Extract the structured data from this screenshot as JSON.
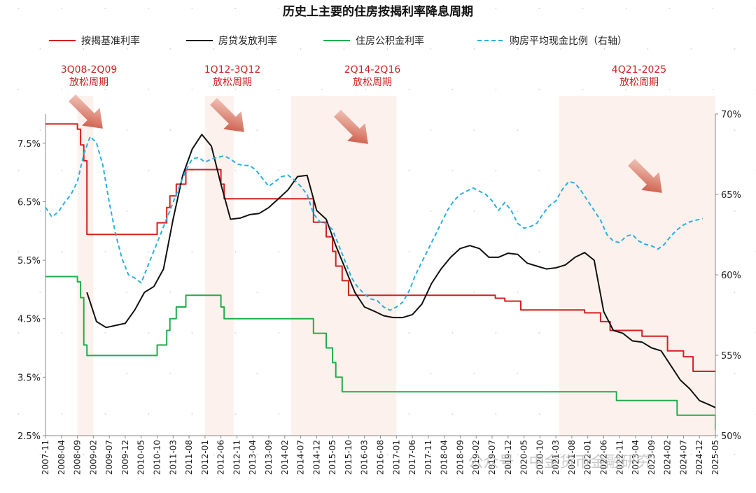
{
  "chart_data": {
    "type": "line",
    "title": "历史上主要的住房按揭利率降息周期",
    "watermark": "公众号 · 中金货币金融研究",
    "left_axis": {
      "ylim": [
        2.5,
        8.0
      ],
      "ticks": [
        "7.5%",
        "6.5%",
        "5.5%",
        "4.5%",
        "3.5%",
        "2.5%"
      ],
      "tick_values": [
        7.5,
        6.5,
        5.5,
        4.5,
        3.5,
        2.5
      ]
    },
    "right_axis": {
      "ylim": [
        50,
        70
      ],
      "ticks": [
        "70%",
        "65%",
        "60%",
        "55%",
        "50%"
      ],
      "tick_values": [
        70,
        65,
        60,
        55,
        50
      ]
    },
    "x_range": [
      "2007-11",
      "2025-05"
    ],
    "x_ticks": [
      "2007-11",
      "2008-04",
      "2008-09",
      "2009-02",
      "2009-07",
      "2009-12",
      "2010-05",
      "2010-10",
      "2011-03",
      "2011-08",
      "2012-01",
      "2012-06",
      "2012-11",
      "2013-04",
      "2013-09",
      "2014-02",
      "2014-07",
      "2014-12",
      "2015-05",
      "2015-10",
      "2016-03",
      "2016-08",
      "2017-01",
      "2017-06",
      "2017-11",
      "2018-04",
      "2018-09",
      "2019-02",
      "2019-07",
      "2019-12",
      "2020-05",
      "2020-10",
      "2021-03",
      "2021-08",
      "2022-01",
      "2022-06",
      "2022-11",
      "2023-04",
      "2023-09",
      "2024-02",
      "2024-07",
      "2024-12",
      "2025-05"
    ],
    "cycles": [
      {
        "label1": "3Q08-2Q09",
        "label2": "放松周期",
        "start": "2008-09",
        "end": "2009-02"
      },
      {
        "label1": "1Q12-3Q12",
        "label2": "放松周期",
        "start": "2012-01",
        "end": "2012-10"
      },
      {
        "label1": "2Q14-2Q16",
        "label2": "放松周期",
        "start": "2014-04",
        "end": "2017-01"
      },
      {
        "label1": "4Q21-2025",
        "label2": "放松周期",
        "start": "2021-04",
        "end": "2025-05"
      }
    ],
    "series": [
      {
        "name": "按揭基准利率",
        "axis": "left",
        "color": "#d42020",
        "style": "step",
        "points": [
          [
            "2007-11",
            7.83
          ],
          [
            "2008-09",
            7.83
          ],
          [
            "2008-09",
            7.74
          ],
          [
            "2008-10",
            7.74
          ],
          [
            "2008-10",
            7.47
          ],
          [
            "2008-11",
            7.47
          ],
          [
            "2008-11",
            7.2
          ],
          [
            "2008-12",
            7.2
          ],
          [
            "2008-12",
            6.12
          ],
          [
            "2008-12",
            5.94
          ],
          [
            "2010-10",
            5.94
          ],
          [
            "2010-10",
            6.14
          ],
          [
            "2011-01",
            6.14
          ],
          [
            "2011-01",
            6.4
          ],
          [
            "2011-02",
            6.4
          ],
          [
            "2011-02",
            6.6
          ],
          [
            "2011-04",
            6.6
          ],
          [
            "2011-04",
            6.8
          ],
          [
            "2011-07",
            6.8
          ],
          [
            "2011-07",
            7.05
          ],
          [
            "2012-06",
            7.05
          ],
          [
            "2012-06",
            6.8
          ],
          [
            "2012-07",
            6.8
          ],
          [
            "2012-07",
            6.55
          ],
          [
            "2014-11",
            6.55
          ],
          [
            "2014-11",
            6.15
          ],
          [
            "2015-03",
            6.15
          ],
          [
            "2015-03",
            5.9
          ],
          [
            "2015-05",
            5.9
          ],
          [
            "2015-05",
            5.65
          ],
          [
            "2015-06",
            5.65
          ],
          [
            "2015-06",
            5.4
          ],
          [
            "2015-08",
            5.4
          ],
          [
            "2015-08",
            5.15
          ],
          [
            "2015-10",
            5.15
          ],
          [
            "2015-10",
            4.9
          ],
          [
            "2019-08",
            4.9
          ],
          [
            "2019-08",
            4.85
          ],
          [
            "2019-11",
            4.85
          ],
          [
            "2019-11",
            4.8
          ],
          [
            "2020-04",
            4.8
          ],
          [
            "2020-04",
            4.65
          ],
          [
            "2021-12",
            4.65
          ],
          [
            "2021-12",
            4.6
          ],
          [
            "2022-05",
            4.6
          ],
          [
            "2022-05",
            4.45
          ],
          [
            "2022-08",
            4.45
          ],
          [
            "2022-08",
            4.3
          ],
          [
            "2023-06",
            4.3
          ],
          [
            "2023-06",
            4.2
          ],
          [
            "2024-02",
            4.2
          ],
          [
            "2024-02",
            3.95
          ],
          [
            "2024-07",
            3.95
          ],
          [
            "2024-07",
            3.85
          ],
          [
            "2024-10",
            3.85
          ],
          [
            "2024-10",
            3.6
          ],
          [
            "2025-05",
            3.6
          ]
        ]
      },
      {
        "name": "房贷发放利率",
        "axis": "left",
        "color": "#111111",
        "style": "line",
        "points": [
          [
            "2008-12",
            4.95
          ],
          [
            "2009-03",
            4.45
          ],
          [
            "2009-06",
            4.35
          ],
          [
            "2009-12",
            4.42
          ],
          [
            "2010-03",
            4.65
          ],
          [
            "2010-06",
            4.95
          ],
          [
            "2010-09",
            5.05
          ],
          [
            "2010-12",
            5.35
          ],
          [
            "2011-03",
            6.2
          ],
          [
            "2011-06",
            6.95
          ],
          [
            "2011-09",
            7.4
          ],
          [
            "2011-12",
            7.65
          ],
          [
            "2012-03",
            7.45
          ],
          [
            "2012-06",
            6.8
          ],
          [
            "2012-09",
            6.2
          ],
          [
            "2012-12",
            6.22
          ],
          [
            "2013-03",
            6.28
          ],
          [
            "2013-06",
            6.3
          ],
          [
            "2013-09",
            6.4
          ],
          [
            "2013-12",
            6.55
          ],
          [
            "2014-03",
            6.7
          ],
          [
            "2014-06",
            6.93
          ],
          [
            "2014-09",
            6.95
          ],
          [
            "2014-12",
            6.35
          ],
          [
            "2015-03",
            6.2
          ],
          [
            "2015-06",
            5.75
          ],
          [
            "2015-09",
            5.35
          ],
          [
            "2015-12",
            4.95
          ],
          [
            "2016-03",
            4.7
          ],
          [
            "2016-06",
            4.63
          ],
          [
            "2016-09",
            4.55
          ],
          [
            "2016-12",
            4.52
          ],
          [
            "2017-03",
            4.52
          ],
          [
            "2017-06",
            4.57
          ],
          [
            "2017-09",
            4.75
          ],
          [
            "2017-12",
            5.1
          ],
          [
            "2018-03",
            5.35
          ],
          [
            "2018-06",
            5.55
          ],
          [
            "2018-09",
            5.7
          ],
          [
            "2018-12",
            5.75
          ],
          [
            "2019-03",
            5.7
          ],
          [
            "2019-06",
            5.55
          ],
          [
            "2019-09",
            5.55
          ],
          [
            "2019-12",
            5.62
          ],
          [
            "2020-03",
            5.6
          ],
          [
            "2020-06",
            5.45
          ],
          [
            "2020-09",
            5.4
          ],
          [
            "2020-12",
            5.35
          ],
          [
            "2021-03",
            5.37
          ],
          [
            "2021-06",
            5.42
          ],
          [
            "2021-09",
            5.55
          ],
          [
            "2021-12",
            5.63
          ],
          [
            "2022-03",
            5.5
          ],
          [
            "2022-06",
            4.62
          ],
          [
            "2022-09",
            4.3
          ],
          [
            "2022-12",
            4.25
          ],
          [
            "2023-03",
            4.12
          ],
          [
            "2023-06",
            4.1
          ],
          [
            "2023-09",
            4.0
          ],
          [
            "2023-12",
            3.95
          ],
          [
            "2024-03",
            3.7
          ],
          [
            "2024-06",
            3.45
          ],
          [
            "2024-09",
            3.3
          ],
          [
            "2024-12",
            3.1
          ],
          [
            "2025-03",
            3.03
          ],
          [
            "2025-05",
            2.98
          ]
        ]
      },
      {
        "name": "住房公积金利率",
        "axis": "left",
        "color": "#1fae4b",
        "style": "step",
        "points": [
          [
            "2007-11",
            5.22
          ],
          [
            "2008-09",
            5.22
          ],
          [
            "2008-09",
            5.13
          ],
          [
            "2008-10",
            5.13
          ],
          [
            "2008-10",
            4.86
          ],
          [
            "2008-11",
            4.86
          ],
          [
            "2008-11",
            4.05
          ],
          [
            "2008-12",
            4.05
          ],
          [
            "2008-12",
            3.87
          ],
          [
            "2010-10",
            3.87
          ],
          [
            "2010-10",
            4.05
          ],
          [
            "2011-01",
            4.05
          ],
          [
            "2011-01",
            4.3
          ],
          [
            "2011-02",
            4.3
          ],
          [
            "2011-02",
            4.5
          ],
          [
            "2011-04",
            4.5
          ],
          [
            "2011-04",
            4.7
          ],
          [
            "2011-07",
            4.7
          ],
          [
            "2011-07",
            4.9
          ],
          [
            "2012-06",
            4.9
          ],
          [
            "2012-06",
            4.7
          ],
          [
            "2012-07",
            4.7
          ],
          [
            "2012-07",
            4.5
          ],
          [
            "2014-11",
            4.5
          ],
          [
            "2014-11",
            4.25
          ],
          [
            "2015-03",
            4.25
          ],
          [
            "2015-03",
            4.0
          ],
          [
            "2015-05",
            4.0
          ],
          [
            "2015-05",
            3.75
          ],
          [
            "2015-06",
            3.75
          ],
          [
            "2015-06",
            3.5
          ],
          [
            "2015-08",
            3.5
          ],
          [
            "2015-08",
            3.25
          ],
          [
            "2022-10",
            3.25
          ],
          [
            "2022-10",
            3.1
          ],
          [
            "2024-05",
            3.1
          ],
          [
            "2024-05",
            2.85
          ],
          [
            "2025-05",
            2.85
          ],
          [
            "2025-05",
            2.6
          ]
        ]
      },
      {
        "name": "购房平均现金比例（右轴）",
        "axis": "right",
        "color": "#29b0e0",
        "style": "dashed",
        "points": [
          [
            "2007-11",
            64.2
          ],
          [
            "2008-01",
            63.6
          ],
          [
            "2008-03",
            63.9
          ],
          [
            "2008-05",
            64.5
          ],
          [
            "2008-07",
            65.0
          ],
          [
            "2008-09",
            65.8
          ],
          [
            "2008-11",
            67.5
          ],
          [
            "2009-01",
            68.6
          ],
          [
            "2009-03",
            68.2
          ],
          [
            "2009-05",
            66.8
          ],
          [
            "2009-07",
            64.5
          ],
          [
            "2009-09",
            62.5
          ],
          [
            "2009-11",
            61.0
          ],
          [
            "2010-01",
            60.0
          ],
          [
            "2010-03",
            59.8
          ],
          [
            "2010-05",
            59.5
          ],
          [
            "2010-07",
            60.5
          ],
          [
            "2010-09",
            61.5
          ],
          [
            "2010-11",
            62.5
          ],
          [
            "2011-01",
            63.5
          ],
          [
            "2011-03",
            64.5
          ],
          [
            "2011-05",
            65.5
          ],
          [
            "2011-07",
            66.5
          ],
          [
            "2011-09",
            67.2
          ],
          [
            "2011-11",
            67.3
          ],
          [
            "2012-01",
            67.0
          ],
          [
            "2012-03",
            67.2
          ],
          [
            "2012-05",
            67.3
          ],
          [
            "2012-07",
            67.4
          ],
          [
            "2012-09",
            67.2
          ],
          [
            "2012-11",
            66.9
          ],
          [
            "2013-01",
            66.8
          ],
          [
            "2013-03",
            66.8
          ],
          [
            "2013-05",
            66.5
          ],
          [
            "2013-07",
            66.0
          ],
          [
            "2013-09",
            65.5
          ],
          [
            "2013-11",
            65.8
          ],
          [
            "2014-01",
            66.1
          ],
          [
            "2014-03",
            66.2
          ],
          [
            "2014-05",
            65.9
          ],
          [
            "2014-07",
            65.5
          ],
          [
            "2014-09",
            65.0
          ],
          [
            "2014-11",
            63.8
          ],
          [
            "2015-01",
            63.3
          ],
          [
            "2015-03",
            63.2
          ],
          [
            "2015-05",
            62.8
          ],
          [
            "2015-07",
            61.8
          ],
          [
            "2015-09",
            60.8
          ],
          [
            "2015-11",
            59.8
          ],
          [
            "2016-01",
            59.2
          ],
          [
            "2016-03",
            58.8
          ],
          [
            "2016-05",
            58.5
          ],
          [
            "2016-07",
            58.4
          ],
          [
            "2016-09",
            58.0
          ],
          [
            "2016-11",
            57.8
          ],
          [
            "2017-01",
            58.0
          ],
          [
            "2017-03",
            58.3
          ],
          [
            "2017-05",
            59.0
          ],
          [
            "2017-07",
            60.0
          ],
          [
            "2017-09",
            60.8
          ],
          [
            "2017-11",
            61.6
          ],
          [
            "2018-01",
            62.4
          ],
          [
            "2018-03",
            63.2
          ],
          [
            "2018-05",
            64.0
          ],
          [
            "2018-07",
            64.6
          ],
          [
            "2018-09",
            65.0
          ],
          [
            "2018-11",
            65.2
          ],
          [
            "2019-01",
            65.4
          ],
          [
            "2019-03",
            65.2
          ],
          [
            "2019-05",
            65.0
          ],
          [
            "2019-07",
            64.6
          ],
          [
            "2019-09",
            64.0
          ],
          [
            "2019-11",
            64.5
          ],
          [
            "2020-01",
            64.0
          ],
          [
            "2020-03",
            63.2
          ],
          [
            "2020-05",
            62.9
          ],
          [
            "2020-07",
            63.0
          ],
          [
            "2020-09",
            63.2
          ],
          [
            "2020-11",
            63.8
          ],
          [
            "2021-01",
            64.3
          ],
          [
            "2021-03",
            64.6
          ],
          [
            "2021-05",
            65.3
          ],
          [
            "2021-07",
            65.8
          ],
          [
            "2021-09",
            65.7
          ],
          [
            "2021-11",
            65.2
          ],
          [
            "2022-01",
            64.6
          ],
          [
            "2022-03",
            64.0
          ],
          [
            "2022-05",
            63.4
          ],
          [
            "2022-07",
            62.5
          ],
          [
            "2022-09",
            62.1
          ],
          [
            "2022-11",
            62.0
          ],
          [
            "2023-01",
            62.4
          ],
          [
            "2023-03",
            62.5
          ],
          [
            "2023-05",
            62.1
          ],
          [
            "2023-07",
            61.9
          ],
          [
            "2023-09",
            61.8
          ],
          [
            "2023-11",
            61.6
          ],
          [
            "2024-01",
            61.9
          ],
          [
            "2024-03",
            62.4
          ],
          [
            "2024-05",
            62.8
          ],
          [
            "2024-07",
            63.1
          ],
          [
            "2024-09",
            63.3
          ],
          [
            "2024-11",
            63.4
          ],
          [
            "2025-01",
            63.5
          ]
        ]
      }
    ]
  }
}
